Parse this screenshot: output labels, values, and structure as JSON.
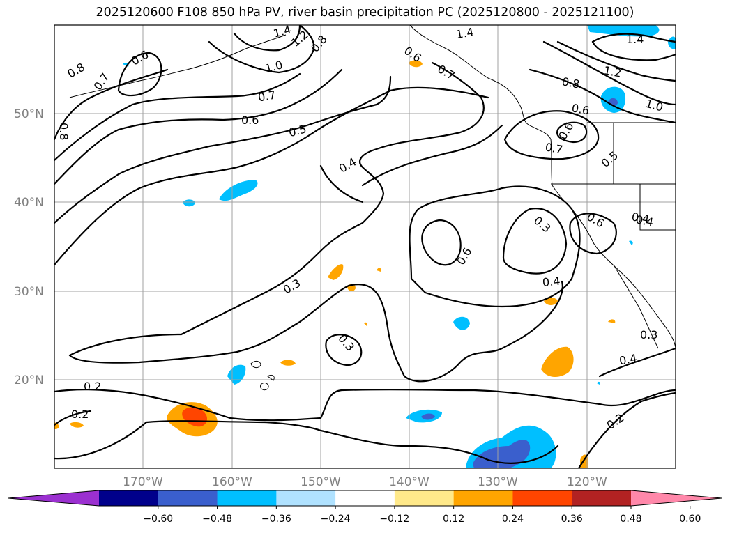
{
  "title": "2025120600 F108 850 hPa PV, river basin precipitation PC (2025120800 - 2025121100)",
  "lat_labels": [
    "50°N",
    "40°N",
    "30°N",
    "20°N"
  ],
  "lon_labels": [
    "170°W",
    "160°W",
    "150°W",
    "140°W",
    "130°W",
    "120°W"
  ],
  "colorbar": {
    "ticks": [
      "−0.60",
      "−0.48",
      "−0.36",
      "−0.24",
      "−0.12",
      "0.12",
      "0.24",
      "0.36",
      "0.48",
      "0.60"
    ],
    "colors": [
      "#9b30d0",
      "#00008b",
      "#3a5fcd",
      "#00bfff",
      "#b0e2ff",
      "#ffffff",
      "#ffe98a",
      "#ffa500",
      "#ff4500",
      "#b22222",
      "#ff88aa"
    ]
  },
  "contour_labels": [
    "1.4",
    "1.2",
    "1.0",
    "0.8",
    "0.7",
    "0.6",
    "0.5",
    "0.4",
    "0.3",
    "0.2"
  ],
  "map_labels": [
    {
      "text": "0.8",
      "id": "l1"
    },
    {
      "text": "0.7",
      "id": "l2"
    },
    {
      "text": "0.6",
      "id": "l3"
    },
    {
      "text": "0.8",
      "id": "l4"
    },
    {
      "text": "1.4",
      "id": "l5"
    },
    {
      "text": "1.2",
      "id": "l6"
    },
    {
      "text": "0.8",
      "id": "l7"
    },
    {
      "text": "1.0",
      "id": "l8"
    },
    {
      "text": "0.7",
      "id": "l9"
    },
    {
      "text": "0.6",
      "id": "l10"
    },
    {
      "text": "0.5",
      "id": "l11"
    },
    {
      "text": "0.4",
      "id": "l12"
    },
    {
      "text": "0.3",
      "id": "l13"
    },
    {
      "text": "0.3",
      "id": "l14"
    },
    {
      "text": "0.2",
      "id": "l15"
    },
    {
      "text": "0.2",
      "id": "l16"
    },
    {
      "text": "0.4",
      "id": "l17"
    },
    {
      "text": "0.6",
      "id": "l18"
    },
    {
      "text": "0.6",
      "id": "l19"
    },
    {
      "text": "0.7",
      "id": "l20"
    },
    {
      "text": "1.4",
      "id": "l21"
    },
    {
      "text": "0.3",
      "id": "l22"
    },
    {
      "text": "0.4",
      "id": "l23"
    },
    {
      "text": "0.6",
      "id": "l24"
    },
    {
      "text": "0.8",
      "id": "l25"
    },
    {
      "text": "0.6",
      "id": "l26"
    },
    {
      "text": "0.7",
      "id": "l27"
    },
    {
      "text": "0.5",
      "id": "l28"
    },
    {
      "text": "1.4",
      "id": "l29"
    },
    {
      "text": "1.2",
      "id": "l30"
    },
    {
      "text": "1.0",
      "id": "l31"
    },
    {
      "text": "0.6",
      "id": "l32"
    },
    {
      "text": "0.4",
      "id": "l33"
    },
    {
      "text": "0.3",
      "id": "l34"
    },
    {
      "text": "0.4",
      "id": "l35"
    },
    {
      "text": "0.2",
      "id": "l36"
    }
  ]
}
